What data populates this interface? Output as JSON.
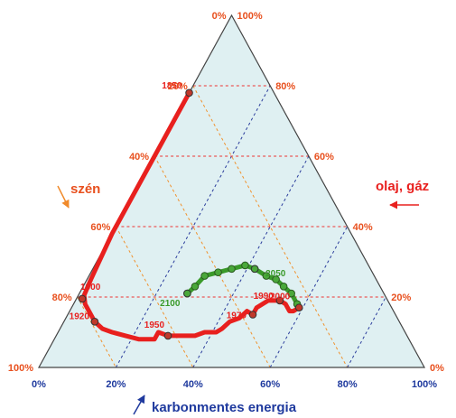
{
  "chart_data": {
    "type": "ternary",
    "axes": {
      "coal": {
        "label": "szén",
        "ticks": [
          "0%",
          "20%",
          "40%",
          "60%",
          "80%",
          "100%"
        ]
      },
      "oil_gas": {
        "label": "olaj, gáz",
        "ticks": [
          "100%",
          "80%",
          "60%",
          "40%",
          "20%",
          "0%"
        ]
      },
      "carbon_free": {
        "label": "karbonmentes energia",
        "ticks": [
          "0%",
          "20%",
          "40%",
          "60%",
          "80%",
          "100%"
        ]
      }
    },
    "grid": true,
    "colors": {
      "fill": "#dff0f2",
      "coal_grid": "#f0922e",
      "oil_gas_grid": "#ee3333",
      "carbon_free_grid": "#2b3d9c",
      "historical": "#e8201e",
      "projection": "#3a9a2a",
      "label_orange": "#e8501e",
      "label_blue": "#1f3a9e"
    },
    "series": [
      {
        "role": "historical",
        "points": [
          {
            "coal": 0.22,
            "oil": 0.0,
            "cf": 0.78
          },
          {
            "coal": 0.36,
            "oil": 0.0,
            "cf": 0.64
          },
          {
            "coal": 0.48,
            "oil": 0.0,
            "cf": 0.52
          },
          {
            "coal": 0.62,
            "oil": 0.0,
            "cf": 0.38
          },
          {
            "coal": 0.74,
            "oil": 0.01,
            "cf": 0.25
          },
          {
            "coal": 0.78,
            "oil": 0.015,
            "cf": 0.205
          },
          {
            "coal": 0.79,
            "oil": 0.03,
            "cf": 0.18
          },
          {
            "coal": 0.79,
            "oil": 0.05,
            "cf": 0.16
          },
          {
            "coal": 0.79,
            "oil": 0.08,
            "cf": 0.13
          },
          {
            "coal": 0.78,
            "oil": 0.11,
            "cf": 0.11
          },
          {
            "coal": 0.76,
            "oil": 0.14,
            "cf": 0.1
          },
          {
            "coal": 0.73,
            "oil": 0.18,
            "cf": 0.09
          },
          {
            "coal": 0.7,
            "oil": 0.22,
            "cf": 0.08
          },
          {
            "coal": 0.66,
            "oil": 0.26,
            "cf": 0.08
          },
          {
            "coal": 0.64,
            "oil": 0.26,
            "cf": 0.1
          },
          {
            "coal": 0.62,
            "oil": 0.29,
            "cf": 0.09
          },
          {
            "coal": 0.58,
            "oil": 0.33,
            "cf": 0.09
          },
          {
            "coal": 0.55,
            "oil": 0.36,
            "cf": 0.09
          },
          {
            "coal": 0.52,
            "oil": 0.38,
            "cf": 0.1
          },
          {
            "coal": 0.49,
            "oil": 0.41,
            "cf": 0.1
          },
          {
            "coal": 0.47,
            "oil": 0.42,
            "cf": 0.11
          },
          {
            "coal": 0.44,
            "oil": 0.43,
            "cf": 0.13
          },
          {
            "coal": 0.41,
            "oil": 0.45,
            "cf": 0.14
          },
          {
            "coal": 0.38,
            "oil": 0.46,
            "cf": 0.16
          },
          {
            "coal": 0.37,
            "oil": 0.48,
            "cf": 0.15
          },
          {
            "coal": 0.35,
            "oil": 0.48,
            "cf": 0.17
          },
          {
            "coal": 0.31,
            "oil": 0.5,
            "cf": 0.19
          },
          {
            "coal": 0.28,
            "oil": 0.53,
            "cf": 0.19
          },
          {
            "coal": 0.27,
            "oil": 0.55,
            "cf": 0.18
          },
          {
            "coal": 0.27,
            "oil": 0.57,
            "cf": 0.16
          },
          {
            "coal": 0.26,
            "oil": 0.58,
            "cf": 0.16
          },
          {
            "coal": 0.24,
            "oil": 0.59,
            "cf": 0.17
          },
          {
            "coal": 0.24,
            "oil": 0.58,
            "cf": 0.18
          }
        ],
        "years": [
          {
            "label": "1850",
            "coal": 0.22,
            "oil": 0.0,
            "cf": 0.78
          },
          {
            "label": "1900",
            "coal": 0.79,
            "oil": 0.015,
            "cf": 0.195
          },
          {
            "label": "1920",
            "coal": 0.79,
            "oil": 0.08,
            "cf": 0.13
          },
          {
            "label": "1950",
            "coal": 0.62,
            "oil": 0.29,
            "cf": 0.09
          },
          {
            "label": "1970",
            "coal": 0.37,
            "oil": 0.48,
            "cf": 0.15
          },
          {
            "label": "1990",
            "coal": 0.28,
            "oil": 0.53,
            "cf": 0.19
          },
          {
            "label": "2000",
            "coal": 0.24,
            "oil": 0.59,
            "cf": 0.17
          }
        ]
      },
      {
        "role": "projection",
        "points": [
          {
            "coal": 0.24,
            "oil": 0.58,
            "cf": 0.18
          },
          {
            "coal": 0.24,
            "oil": 0.55,
            "cf": 0.21
          },
          {
            "coal": 0.25,
            "oil": 0.52,
            "cf": 0.23
          },
          {
            "coal": 0.26,
            "oil": 0.49,
            "cf": 0.25
          },
          {
            "coal": 0.28,
            "oil": 0.46,
            "cf": 0.26
          },
          {
            "coal": 0.3,
            "oil": 0.42,
            "cf": 0.28
          },
          {
            "coal": 0.32,
            "oil": 0.39,
            "cf": 0.29
          },
          {
            "coal": 0.36,
            "oil": 0.36,
            "cf": 0.28
          },
          {
            "coal": 0.4,
            "oil": 0.33,
            "cf": 0.27
          },
          {
            "coal": 0.44,
            "oil": 0.3,
            "cf": 0.26
          },
          {
            "coal": 0.48,
            "oil": 0.29,
            "cf": 0.23
          },
          {
            "coal": 0.51,
            "oil": 0.28,
            "cf": 0.21
          }
        ],
        "years": [
          {
            "label": "2050",
            "coal": 0.3,
            "oil": 0.42,
            "cf": 0.28
          },
          {
            "label": "2100",
            "coal": 0.51,
            "oil": 0.28,
            "cf": 0.21
          }
        ]
      }
    ]
  }
}
